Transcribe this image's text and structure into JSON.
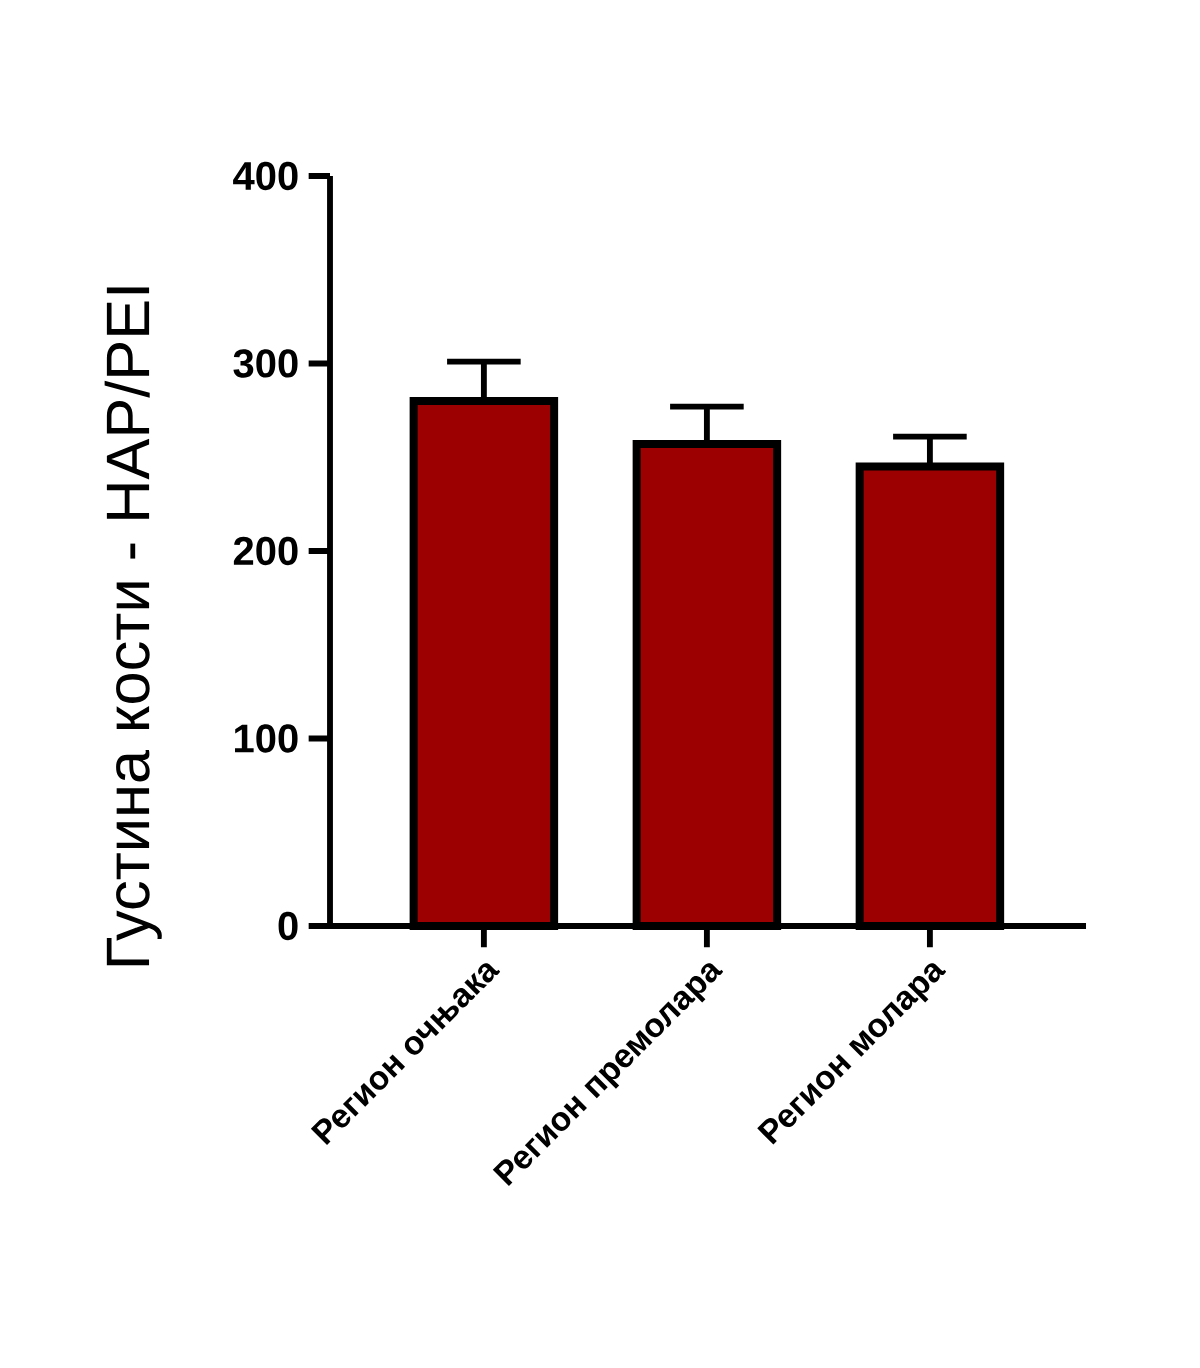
{
  "chart_data": {
    "type": "bar",
    "ylabel": "Густина кости - HAP/PEI",
    "categories": [
      "Регион очњака",
      "Регион премолара",
      "Регион молара"
    ],
    "values": [
      280,
      257,
      245
    ],
    "errors": [
      [
        280,
        301
      ],
      [
        257,
        277
      ],
      [
        245,
        261
      ]
    ],
    "color": "#9c0000",
    "ylim": [
      0,
      400
    ],
    "yticks": [
      0,
      100,
      200,
      300,
      400
    ]
  }
}
